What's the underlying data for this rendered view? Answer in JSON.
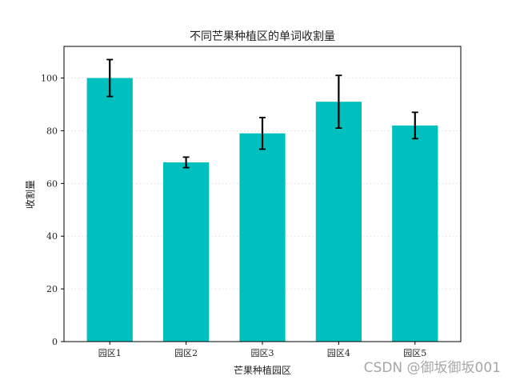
{
  "chart_data": {
    "type": "bar",
    "title": "不同芒果种植区的单词收割量",
    "xlabel": "芒果种植园区",
    "ylabel": "收割量",
    "categories": [
      "园区1",
      "园区2",
      "园区3",
      "园区4",
      "园区5"
    ],
    "values": [
      100,
      68,
      79,
      91,
      82
    ],
    "errors": [
      7,
      2,
      6,
      10,
      5
    ],
    "ylim": [
      0,
      112
    ],
    "yticks": [
      0,
      20,
      40,
      60,
      80,
      100
    ],
    "grid": "y-dotted",
    "bar_color": "#00bfbf",
    "error_color": "#000000"
  },
  "watermark": "CSDN @御坂御坂001"
}
